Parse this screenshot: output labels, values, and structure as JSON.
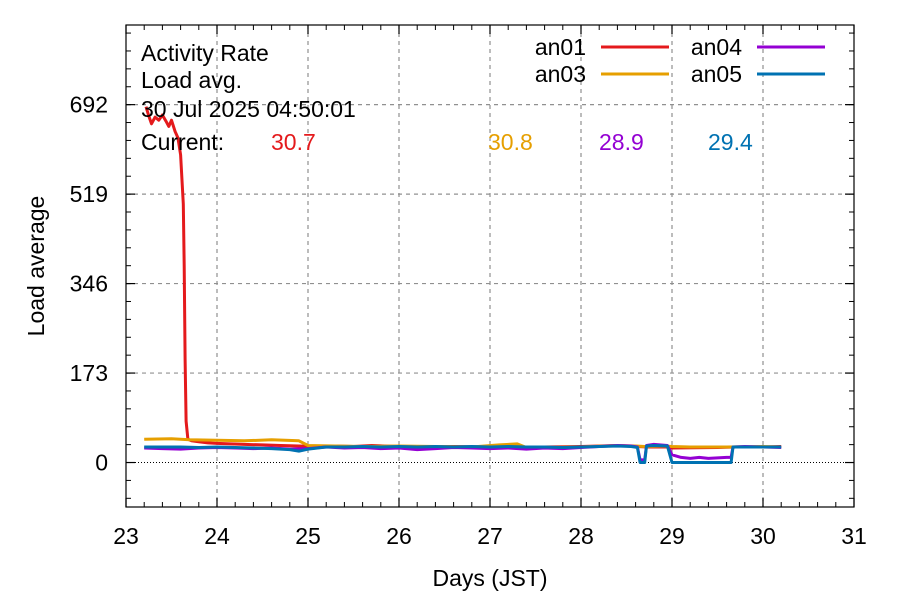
{
  "chart_data": {
    "type": "line",
    "title_lines": [
      "Activity Rate",
      "Load avg.",
      "30 Jul 2025 04:50:01"
    ],
    "current_label": "Current:",
    "xlabel": "Days (JST)",
    "ylabel": "Load average",
    "xlim": [
      23,
      31
    ],
    "ylim": [
      -86,
      846
    ],
    "x_ticks": [
      23,
      24,
      25,
      26,
      27,
      28,
      29,
      30,
      31
    ],
    "x_tick_labels": [
      "23",
      "24",
      "25",
      "26",
      "27",
      "28",
      "29",
      "30",
      "31"
    ],
    "y_ticks": [
      0,
      173,
      346,
      519,
      692
    ],
    "y_tick_labels": [
      "0",
      "173",
      "346",
      "519",
      "692"
    ],
    "grid": true,
    "legend_position": "top-right",
    "series": [
      {
        "name": "an01",
        "color": "#e41a1c",
        "current": "30.7",
        "points": [
          [
            23.22,
            688
          ],
          [
            23.25,
            670
          ],
          [
            23.28,
            655
          ],
          [
            23.32,
            668
          ],
          [
            23.36,
            662
          ],
          [
            23.4,
            672
          ],
          [
            23.44,
            660
          ],
          [
            23.47,
            650
          ],
          [
            23.5,
            662
          ],
          [
            23.54,
            640
          ],
          [
            23.57,
            628
          ],
          [
            23.6,
            595
          ],
          [
            23.63,
            500
          ],
          [
            23.64,
            380
          ],
          [
            23.65,
            200
          ],
          [
            23.66,
            80
          ],
          [
            23.68,
            45
          ],
          [
            23.72,
            42
          ],
          [
            23.8,
            40
          ],
          [
            23.9,
            38
          ],
          [
            24.0,
            37
          ],
          [
            24.15,
            36
          ],
          [
            24.3,
            35
          ],
          [
            24.5,
            34
          ],
          [
            24.7,
            33
          ],
          [
            24.9,
            32
          ],
          [
            25.1,
            31
          ],
          [
            25.3,
            32
          ],
          [
            25.5,
            31
          ],
          [
            25.7,
            33
          ],
          [
            26.0,
            31
          ],
          [
            26.3,
            30
          ],
          [
            26.6,
            31
          ],
          [
            27.0,
            30
          ],
          [
            27.3,
            29
          ],
          [
            27.6,
            30
          ],
          [
            28.0,
            31
          ],
          [
            28.2,
            32
          ],
          [
            28.4,
            33
          ],
          [
            28.6,
            31
          ],
          [
            28.75,
            30
          ],
          [
            28.95,
            30
          ],
          [
            29.0,
            28
          ],
          [
            29.5,
            29
          ],
          [
            29.7,
            30
          ],
          [
            30.0,
            30
          ],
          [
            30.2,
            31
          ]
        ]
      },
      {
        "name": "an03",
        "color": "#e69f00",
        "current": "30.8",
        "points": [
          [
            23.2,
            45
          ],
          [
            23.5,
            46
          ],
          [
            23.7,
            44
          ],
          [
            24.0,
            43
          ],
          [
            24.3,
            42
          ],
          [
            24.6,
            44
          ],
          [
            24.9,
            42
          ],
          [
            25.0,
            33
          ],
          [
            25.3,
            32
          ],
          [
            25.6,
            31
          ],
          [
            26.0,
            32
          ],
          [
            26.4,
            31
          ],
          [
            26.8,
            30
          ],
          [
            27.1,
            34
          ],
          [
            27.3,
            36
          ],
          [
            27.4,
            29
          ],
          [
            27.7,
            29
          ],
          [
            28.0,
            30
          ],
          [
            28.4,
            33
          ],
          [
            28.6,
            32
          ],
          [
            28.7,
            31
          ],
          [
            28.9,
            32
          ],
          [
            29.0,
            31
          ],
          [
            29.2,
            30
          ],
          [
            29.6,
            30
          ],
          [
            30.0,
            31
          ],
          [
            30.2,
            30
          ]
        ]
      },
      {
        "name": "an04",
        "color": "#9400d3",
        "current": "28.9",
        "points": [
          [
            23.2,
            28
          ],
          [
            23.4,
            27
          ],
          [
            23.6,
            26
          ],
          [
            23.8,
            28
          ],
          [
            24.0,
            29
          ],
          [
            24.2,
            28
          ],
          [
            24.4,
            27
          ],
          [
            24.6,
            28
          ],
          [
            24.8,
            26
          ],
          [
            25.0,
            27
          ],
          [
            25.2,
            30
          ],
          [
            25.4,
            28
          ],
          [
            25.6,
            29
          ],
          [
            25.8,
            27
          ],
          [
            26.0,
            28
          ],
          [
            26.2,
            25
          ],
          [
            26.4,
            27
          ],
          [
            26.6,
            29
          ],
          [
            26.8,
            28
          ],
          [
            27.0,
            27
          ],
          [
            27.2,
            28
          ],
          [
            27.4,
            26
          ],
          [
            27.6,
            28
          ],
          [
            27.8,
            27
          ],
          [
            28.0,
            29
          ],
          [
            28.2,
            31
          ],
          [
            28.4,
            33
          ],
          [
            28.55,
            32
          ],
          [
            28.62,
            30
          ],
          [
            28.65,
            5
          ],
          [
            28.7,
            5
          ],
          [
            28.72,
            33
          ],
          [
            28.8,
            35
          ],
          [
            28.95,
            33
          ],
          [
            29.0,
            15
          ],
          [
            29.1,
            10
          ],
          [
            29.2,
            8
          ],
          [
            29.3,
            10
          ],
          [
            29.4,
            8
          ],
          [
            29.5,
            9
          ],
          [
            29.6,
            10
          ],
          [
            29.65,
            10
          ],
          [
            29.67,
            30
          ],
          [
            29.8,
            31
          ],
          [
            30.0,
            30
          ],
          [
            30.2,
            29
          ]
        ]
      },
      {
        "name": "an05",
        "color": "#0072b2",
        "current": "29.4",
        "points": [
          [
            23.2,
            30
          ],
          [
            23.4,
            30
          ],
          [
            23.6,
            30
          ],
          [
            23.8,
            29
          ],
          [
            24.0,
            30
          ],
          [
            24.2,
            29
          ],
          [
            24.4,
            28
          ],
          [
            24.6,
            27
          ],
          [
            24.8,
            25
          ],
          [
            24.9,
            22
          ],
          [
            25.0,
            26
          ],
          [
            25.2,
            30
          ],
          [
            25.4,
            30
          ],
          [
            25.6,
            31
          ],
          [
            25.8,
            30
          ],
          [
            26.0,
            31
          ],
          [
            26.2,
            30
          ],
          [
            26.4,
            31
          ],
          [
            26.6,
            30
          ],
          [
            26.8,
            31
          ],
          [
            27.0,
            30
          ],
          [
            27.2,
            31
          ],
          [
            27.4,
            30
          ],
          [
            27.6,
            30
          ],
          [
            27.8,
            29
          ],
          [
            28.0,
            30
          ],
          [
            28.2,
            31
          ],
          [
            28.4,
            32
          ],
          [
            28.55,
            31
          ],
          [
            28.62,
            29
          ],
          [
            28.65,
            0
          ],
          [
            28.7,
            0
          ],
          [
            28.72,
            32
          ],
          [
            28.8,
            33
          ],
          [
            28.95,
            32
          ],
          [
            29.0,
            0
          ],
          [
            29.2,
            0
          ],
          [
            29.4,
            0
          ],
          [
            29.6,
            0
          ],
          [
            29.65,
            0
          ],
          [
            29.67,
            30
          ],
          [
            29.8,
            30
          ],
          [
            30.0,
            30
          ],
          [
            30.2,
            30
          ]
        ]
      }
    ]
  }
}
